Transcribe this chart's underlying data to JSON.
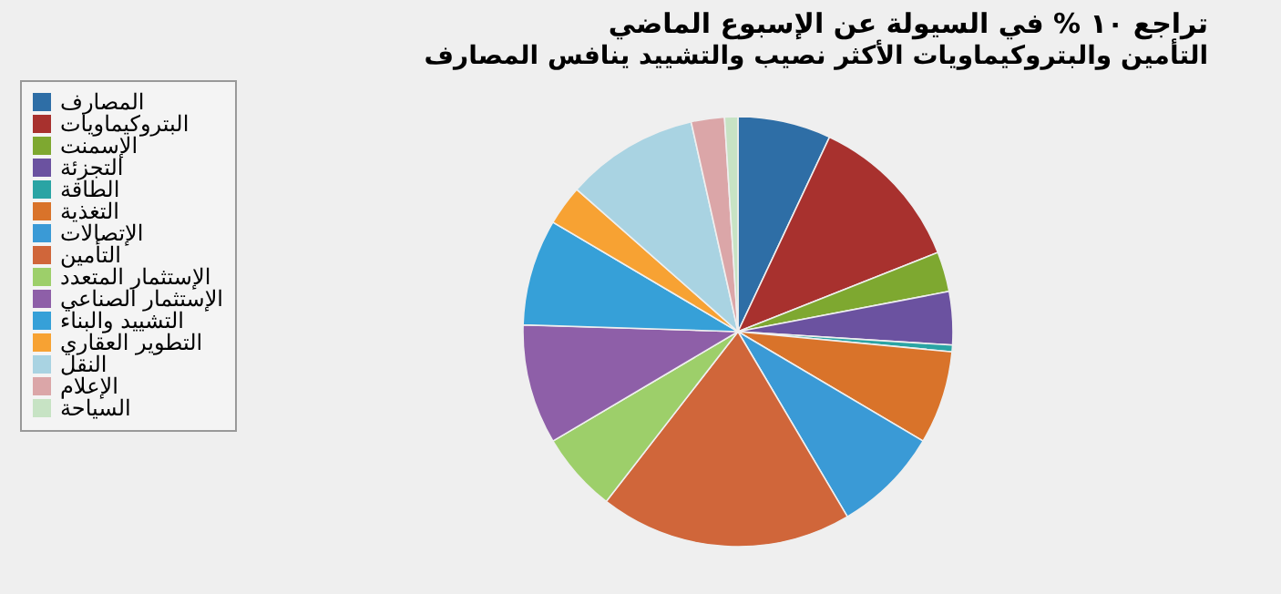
{
  "chart_data": {
    "type": "pie",
    "title": "تراجع ١٠ % في السيولة عن الإسبوع الماضي",
    "subtitle": "التأمين والبتروكيماويات الأكثر نصيب والتشييد ينافس المصارف",
    "categories": [
      "المصارف",
      "البتروكيماويات",
      "الإسمنت",
      "التجزئة",
      "الطاقة",
      "التغذية",
      "الإتصالات",
      "التأمين",
      "الإستثمار المتعدد",
      "الإستثمار الصناعي",
      "التشييد والبناء",
      "التطوير العقاري",
      "النقل",
      "الإعلام",
      "السياحة"
    ],
    "values": [
      7,
      12,
      3,
      4,
      0.5,
      7,
      8,
      19,
      6,
      9,
      8,
      3,
      10,
      2.5,
      1
    ],
    "colors": [
      "#2e6ea6",
      "#a8312e",
      "#7ea830",
      "#6b52a0",
      "#2aa4a4",
      "#d9732a",
      "#3a9ad6",
      "#d0663a",
      "#9dcf6a",
      "#8e5fa8",
      "#36a0d8",
      "#f7a233",
      "#a9d3e2",
      "#dba6a8",
      "#c7e3c4"
    ],
    "legend": "left"
  }
}
